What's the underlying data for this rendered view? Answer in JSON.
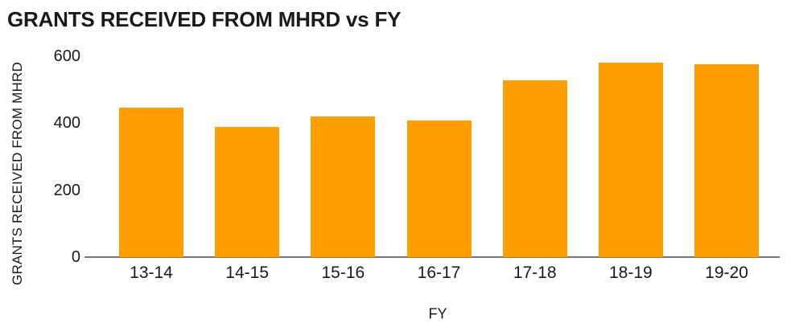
{
  "chart_data": {
    "type": "bar",
    "title": "GRANTS RECEIVED FROM MHRD vs FY",
    "xlabel": "FY",
    "ylabel": "GRANTS RECEIVED FROM MHRD",
    "categories": [
      "13-14",
      "14-15",
      "15-16",
      "16-17",
      "17-18",
      "18-19",
      "19-20"
    ],
    "values": [
      446,
      390,
      419,
      407,
      528,
      581,
      576
    ],
    "yticks": [
      0,
      200,
      400,
      600
    ],
    "ylim": [
      0,
      600
    ],
    "grid": false,
    "legend": "none",
    "bar_color": "#ff9e00",
    "axis_line_color": "#757575",
    "text_color": "#1a1a1a",
    "background_color": "#ffffff"
  }
}
